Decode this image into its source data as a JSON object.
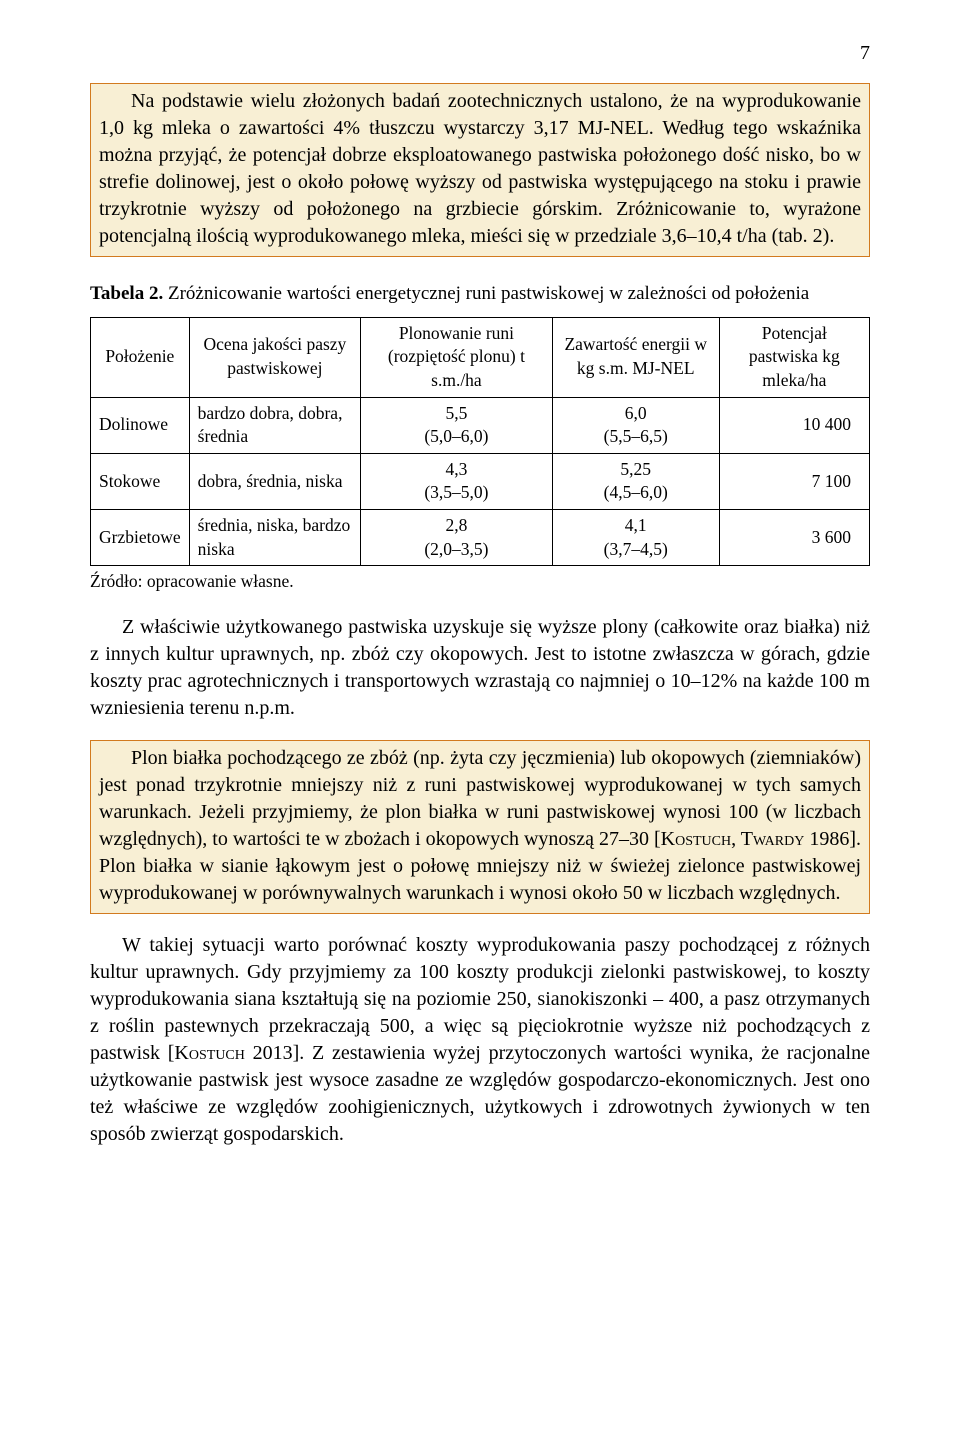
{
  "page_number": "7",
  "box1": {
    "text": "Na podstawie wielu złożonych badań zootechnicznych ustalono, że na wyprodukowanie 1,0 kg mleka o zawartości 4% tłuszczu wystarczy 3,17 MJ-NEL. Według tego wskaźnika można przyjąć, że potencjał dobrze eksploatowanego pastwiska położonego dość nisko, bo w strefie dolinowej, jest o około połowę wyższy od pastwiska występującego na stoku i prawie trzykrotnie wyższy od położonego na grzbiecie górskim. Zróżnicowanie to, wyrażone potencjalną ilością wyprodukowanego mleka, mieści się w przedziale 3,6–10,4 t/ha (tab. 2)."
  },
  "table2": {
    "label": "Tabela 2.",
    "caption": "Zróżnicowanie wartości energetycznej runi pastwiskowej w zależności od położenia",
    "headers": {
      "c1": "Położenie",
      "c2": "Ocena jakości paszy pastwiskowej",
      "c3": "Plonowanie runi (rozpiętość plonu) t s.m./ha",
      "c4": "Zawartość energii w kg s.m. MJ-NEL",
      "c5": "Potencjał pastwiska kg mleka/ha"
    },
    "rows": [
      {
        "c1": "Dolinowe",
        "c2": "bardzo dobra, dobra, średnia",
        "c3a": "5,5",
        "c3b": "(5,0–6,0)",
        "c4a": "6,0",
        "c4b": "(5,5–6,5)",
        "c5": "10 400"
      },
      {
        "c1": "Stokowe",
        "c2": "dobra, średnia, niska",
        "c3a": "4,3",
        "c3b": "(3,5–5,0)",
        "c4a": "5,25",
        "c4b": "(4,5–6,0)",
        "c5": "7 100"
      },
      {
        "c1": "Grzbietowe",
        "c2": "średnia, niska, bardzo niska",
        "c3a": "2,8",
        "c3b": "(2,0–3,5)",
        "c4a": "4,1",
        "c4b": "(3,7–4,5)",
        "c5": "3 600"
      }
    ],
    "source": "Źródło: opracowanie własne."
  },
  "para2": "Z właściwie użytkowanego pastwiska uzyskuje się wyższe plony (całkowite oraz białka) niż z innych kultur uprawnych, np. zbóż czy okopowych. Jest to istotne zwłaszcza w górach, gdzie koszty prac agrotechnicznych i transportowych wzrastają co najmniej o 10–12% na każde 100 m wzniesienia terenu n.p.m.",
  "box2": {
    "pre": "Plon białka pochodzącego ze zbóż (np. żyta czy jęczmienia) lub okopowych (ziemniaków) jest ponad trzykrotnie mniejszy niż z runi pastwiskowej wyprodukowanej w tych samych warunkach. Jeżeli przyjmiemy, że plon białka w runi pastwiskowej wynosi 100 (w liczbach względnych), to wartości te w zbożach i okopowych wynoszą 27–30 [",
    "ref": "Kostuch, Twardy",
    "year": " 1986]. Plon białka w sianie łąkowym jest o połowę mniejszy niż w świeżej zielonce pastwiskowej wyprodukowanej w porównywalnych warunkach i wynosi około 50 w liczbach względnych."
  },
  "para3": {
    "pre": "W takiej sytuacji warto porównać koszty wyprodukowania paszy pochodzącej z różnych kultur uprawnych. Gdy przyjmiemy za 100 koszty produkcji zielonki pastwiskowej, to koszty wyprodukowania siana kształtują się na poziomie 250, sianokiszonki – 400, a pasz otrzymanych z roślin pastewnych przekraczają 500, a więc są pięciokrotnie wyższe niż pochodzących z pastwisk [",
    "ref": "Kostuch",
    "year": " 2013]. Z zestawienia wyżej przytoczonych wartości wynika, że racjonalne użytkowanie pastwisk jest wysoce zasadne ze względów gospodarczo-ekonomicznych. Jest ono też właściwe ze względów zoohigienicznych, użytkowych i zdrowotnych żywionych w ten sposób zwierząt gospodarskich."
  },
  "style": {
    "highlight_border": "#d27a1f",
    "highlight_bg": "#f8efd4",
    "text_color": "#000000",
    "page_bg": "#ffffff"
  }
}
